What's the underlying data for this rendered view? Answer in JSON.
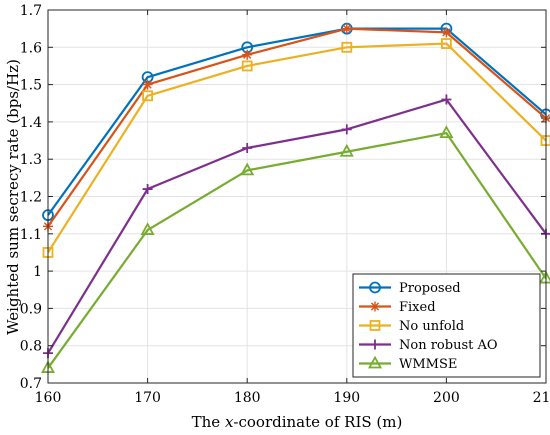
{
  "chart_data": {
    "type": "line",
    "xlabel_parts": {
      "pre": "The ",
      "var": "x",
      "post": "-coordinate of RIS (m)"
    },
    "ylabel": "Weighted sum secrecy rate (bps/Hz)",
    "x": [
      160,
      170,
      180,
      190,
      200,
      210
    ],
    "xlim": [
      160,
      210
    ],
    "ylim": [
      0.7,
      1.7
    ],
    "xticks": [
      "160",
      "170",
      "180",
      "190",
      "200",
      "210"
    ],
    "yticks": [
      "0.7",
      "0.8",
      "0.9",
      "1",
      "1.1",
      "1.2",
      "1.3",
      "1.4",
      "1.5",
      "1.6",
      "1.7"
    ],
    "grid": true,
    "legend_position": "bottom-right",
    "series": [
      {
        "name": "Proposed",
        "color": "#0072BD",
        "marker": "circle",
        "values": [
          1.15,
          1.52,
          1.6,
          1.65,
          1.65,
          1.42
        ]
      },
      {
        "name": "Fixed",
        "color": "#D95319",
        "marker": "asterisk",
        "values": [
          1.12,
          1.5,
          1.58,
          1.65,
          1.64,
          1.41
        ]
      },
      {
        "name": "No unfold",
        "color": "#EDB120",
        "marker": "square",
        "values": [
          1.05,
          1.47,
          1.55,
          1.6,
          1.61,
          1.35
        ]
      },
      {
        "name": "Non robust AO",
        "color": "#7E2F8E",
        "marker": "plus",
        "values": [
          0.78,
          1.22,
          1.33,
          1.38,
          1.46,
          1.1
        ]
      },
      {
        "name": "WMMSE",
        "color": "#77AC30",
        "marker": "triangle",
        "values": [
          0.74,
          1.11,
          1.27,
          1.32,
          1.37,
          0.98
        ]
      }
    ]
  }
}
